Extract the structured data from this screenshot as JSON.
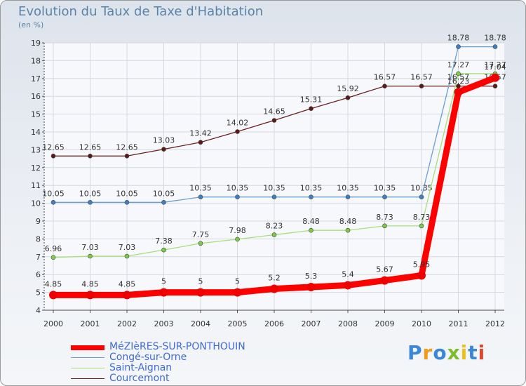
{
  "header": {
    "title": "Evolution du Taux de Taxe d'Habitation",
    "subtitle": "(en %)"
  },
  "chart_data": {
    "type": "line",
    "title": "Evolution du Taux de Taxe d'Habitation",
    "ylabel": "(en %)",
    "xlabel": "",
    "ylim": [
      4,
      19
    ],
    "grid": true,
    "categories": [
      "2000",
      "2001",
      "2002",
      "2003",
      "2004",
      "2005",
      "2006",
      "2007",
      "2008",
      "2009",
      "2010",
      "2011",
      "2012"
    ],
    "yticks": [
      4,
      5,
      6,
      7,
      8,
      9,
      10,
      11,
      12,
      13,
      14,
      15,
      16,
      17,
      18,
      19
    ],
    "series": [
      {
        "name": "Courcemont",
        "color": "#6b2020",
        "marker": "#5a1818",
        "values": [
          12.65,
          12.65,
          12.65,
          13.03,
          13.42,
          14.02,
          14.65,
          15.31,
          15.92,
          16.57,
          16.57,
          16.57,
          16.57
        ],
        "labels": [
          "12.65",
          "12.65",
          "12.65",
          "13.03",
          "13.42",
          "14.02",
          "14.65",
          "15.31",
          "15.92",
          "16.57",
          "16.57",
          "16.57",
          "16.57"
        ]
      },
      {
        "name": "Congé-sur-Orne",
        "color": "#6a9fd1",
        "marker": "#3f80c4",
        "values": [
          10.05,
          10.05,
          10.05,
          10.05,
          10.35,
          10.35,
          10.35,
          10.35,
          10.35,
          10.35,
          10.35,
          18.78,
          18.78
        ],
        "labels": [
          "10.05",
          "10.05",
          "10.05",
          "10.05",
          "10.35",
          "10.35",
          "10.35",
          "10.35",
          "10.35",
          "10.35",
          "10.35",
          "18.78",
          "18.78"
        ]
      },
      {
        "name": "Saint-Aignan",
        "color": "#a6df7a",
        "marker": "#7ccd45",
        "values": [
          6.96,
          7.03,
          7.03,
          7.38,
          7.75,
          7.98,
          8.23,
          8.48,
          8.48,
          8.73,
          8.73,
          17.27,
          17.27
        ],
        "labels": [
          "6.96",
          "7.03",
          "7.03",
          "7.38",
          "7.75",
          "7.98",
          "8.23",
          "8.48",
          "8.48",
          "8.73",
          "8.73",
          "17.27",
          "17.27"
        ]
      },
      {
        "name": "MéZIèRES-SUR-PONTHOUIN",
        "color": "#ff0000",
        "marker": "#ee0000",
        "values": [
          4.85,
          4.85,
          4.85,
          5,
          5,
          5,
          5.2,
          5.3,
          5.4,
          5.67,
          5.95,
          16.23,
          17.04
        ],
        "labels": [
          "4.85",
          "4.85",
          "4.85",
          "5",
          "5",
          "5",
          "5.2",
          "5.3",
          "5.4",
          "5.67",
          "5.95",
          "16.23",
          "17.04"
        ]
      }
    ]
  },
  "legend": {
    "items": [
      {
        "label": "MéZIèRES-SUR-PONTHOUIN",
        "color": "#ff0000"
      },
      {
        "label": "Congé-sur-Orne",
        "color": "#6a9fd1"
      },
      {
        "label": "Saint-Aignan",
        "color": "#a6df7a"
      },
      {
        "label": "Courcemont",
        "color": "#6b2020"
      }
    ]
  },
  "logo": {
    "text": "Proxiti",
    "colors": [
      "#3a87d6",
      "#f29a1a",
      "#3a87d6",
      "#7cbd2c",
      "#e8c21a",
      "#3a87d6",
      "#e0462a"
    ]
  }
}
